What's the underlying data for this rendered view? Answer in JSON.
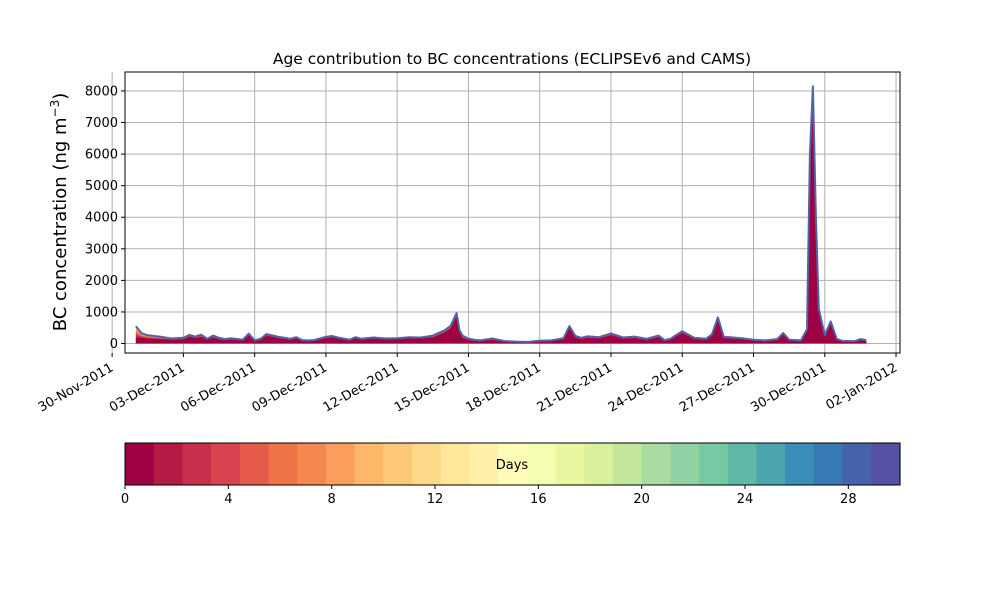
{
  "chart_data": {
    "type": "area",
    "title": "Age contribution to BC concentrations (ECLIPSEv6 and CAMS)",
    "ylabel": "BC concentration (ng m",
    "ylabel_sup": "−3",
    "ylabel_close": ")",
    "xlabel": "",
    "ylim": [
      -300,
      8600
    ],
    "yticks": [
      0,
      1000,
      2000,
      3000,
      4000,
      5000,
      6000,
      7000,
      8000
    ],
    "xlim": [
      "2011-11-30T13:00",
      "2012-01-02T04:00"
    ],
    "xtick_labels": [
      "30-Nov-2011",
      "03-Dec-2011",
      "06-Dec-2011",
      "09-Dec-2011",
      "12-Dec-2011",
      "15-Dec-2011",
      "18-Dec-2011",
      "21-Dec-2011",
      "24-Dec-2011",
      "27-Dec-2011",
      "30-Dec-2011",
      "02-Jan-2012"
    ],
    "xtick_dates": [
      "2011-11-30",
      "2011-12-03",
      "2011-12-06",
      "2011-12-09",
      "2011-12-12",
      "2011-12-15",
      "2011-12-18",
      "2011-12-21",
      "2011-12-24",
      "2011-12-27",
      "2011-12-30",
      "2012-01-02"
    ],
    "grid": true,
    "series": [
      {
        "x": [
          "2011-12-01T00:00",
          "2011-12-01T06:00",
          "2011-12-01T12:00",
          "2011-12-02T00:00",
          "2011-12-02T12:00",
          "2011-12-03T00:00",
          "2011-12-03T06:00",
          "2011-12-03T12:00",
          "2011-12-03T18:00",
          "2011-12-04T00:00",
          "2011-12-04T06:00",
          "2011-12-04T12:00",
          "2011-12-04T18:00",
          "2011-12-05T00:00",
          "2011-12-05T12:00",
          "2011-12-05T18:00",
          "2011-12-06T00:00",
          "2011-12-06T06:00",
          "2011-12-06T12:00",
          "2011-12-07T00:00",
          "2011-12-07T06:00",
          "2011-12-07T12:00",
          "2011-12-07T18:00",
          "2011-12-08T00:00",
          "2011-12-08T06:00",
          "2011-12-08T12:00",
          "2011-12-09T00:00",
          "2011-12-09T06:00",
          "2011-12-09T12:00",
          "2011-12-10T00:00",
          "2011-12-10T06:00",
          "2011-12-10T12:00",
          "2011-12-11T00:00",
          "2011-12-11T12:00",
          "2011-12-12T00:00",
          "2011-12-12T12:00",
          "2011-12-13T00:00",
          "2011-12-13T12:00",
          "2011-12-14T00:00",
          "2011-12-14T06:00",
          "2011-12-14T12:00",
          "2011-12-14T15:00",
          "2011-12-14T18:00",
          "2011-12-15T00:00",
          "2011-12-15T06:00",
          "2011-12-15T12:00",
          "2011-12-16T00:00",
          "2011-12-16T12:00",
          "2011-12-17T00:00",
          "2011-12-17T12:00",
          "2011-12-18T00:00",
          "2011-12-18T12:00",
          "2011-12-19T00:00",
          "2011-12-19T06:00",
          "2011-12-19T12:00",
          "2011-12-19T18:00",
          "2011-12-20T00:00",
          "2011-12-20T12:00",
          "2011-12-21T00:00",
          "2011-12-21T12:00",
          "2011-12-22T00:00",
          "2011-12-22T12:00",
          "2011-12-23T00:00",
          "2011-12-23T06:00",
          "2011-12-23T12:00",
          "2011-12-24T00:00",
          "2011-12-24T12:00",
          "2011-12-25T00:00",
          "2011-12-25T06:00",
          "2011-12-25T12:00",
          "2011-12-25T18:00",
          "2011-12-26T00:00",
          "2011-12-26T12:00",
          "2011-12-27T00:00",
          "2011-12-27T12:00",
          "2011-12-28T00:00",
          "2011-12-28T06:00",
          "2011-12-28T12:00",
          "2011-12-29T00:00",
          "2011-12-29T06:00",
          "2011-12-29T09:00",
          "2011-12-29T12:00",
          "2011-12-29T15:00",
          "2011-12-29T18:00",
          "2011-12-30T00:00",
          "2011-12-30T06:00",
          "2011-12-30T12:00",
          "2011-12-30T18:00",
          "2011-12-31T00:00",
          "2011-12-31T06:00",
          "2011-12-31T12:00",
          "2011-12-31T18:00"
        ],
        "total": [
          550,
          320,
          260,
          220,
          160,
          180,
          270,
          220,
          280,
          150,
          250,
          180,
          140,
          170,
          120,
          310,
          100,
          150,
          300,
          210,
          180,
          150,
          200,
          110,
          100,
          110,
          210,
          240,
          190,
          120,
          200,
          150,
          190,
          160,
          170,
          200,
          190,
          250,
          420,
          560,
          960,
          420,
          250,
          150,
          120,
          100,
          160,
          80,
          60,
          50,
          90,
          100,
          170,
          550,
          240,
          180,
          230,
          200,
          320,
          190,
          220,
          150,
          250,
          110,
          150,
          390,
          180,
          150,
          290,
          830,
          210,
          200,
          170,
          120,
          100,
          140,
          330,
          120,
          100,
          450,
          6000,
          8150,
          4000,
          1100,
          260,
          700,
          150,
          80,
          80,
          70,
          140,
          110
        ],
        "young": [
          100,
          140,
          130,
          120,
          110,
          120,
          200,
          160,
          190,
          110,
          180,
          120,
          100,
          110,
          90,
          240,
          70,
          110,
          230,
          160,
          130,
          100,
          150,
          70,
          80,
          80,
          160,
          190,
          150,
          90,
          160,
          110,
          150,
          120,
          130,
          160,
          150,
          180,
          330,
          460,
          820,
          320,
          170,
          100,
          70,
          60,
          110,
          50,
          40,
          30,
          60,
          70,
          120,
          470,
          180,
          130,
          170,
          150,
          250,
          140,
          160,
          100,
          190,
          80,
          110,
          320,
          130,
          110,
          230,
          740,
          150,
          150,
          120,
          80,
          70,
          100,
          270,
          80,
          70,
          380,
          5700,
          7600,
          3700,
          950,
          210,
          620,
          100,
          50,
          50,
          40,
          90,
          70
        ]
      }
    ]
  },
  "colorbar": {
    "label": "Days",
    "vmin": 0,
    "vmax": 30,
    "ticks": [
      0,
      4,
      8,
      12,
      16,
      20,
      24,
      28
    ],
    "colors": [
      "#9e0142",
      "#b31a45",
      "#c92e4a",
      "#d8434f",
      "#e65a4a",
      "#f07248",
      "#f6894f",
      "#fb9f5c",
      "#fdb768",
      "#fdc878",
      "#fed98a",
      "#fee69a",
      "#fef1a7",
      "#fffbb8",
      "#f7fcb3",
      "#eaf7a1",
      "#d9f09c",
      "#c3e69d",
      "#aadca2",
      "#91d2a4",
      "#77c8a4",
      "#5fb9a6",
      "#4aa5ae",
      "#3a8fb8",
      "#3779b3",
      "#4562aa",
      "#5650a2"
    ]
  },
  "plot_colors": {
    "outline": "#5062a8",
    "grid": "#b0b0b0",
    "band_colors": [
      "#f1c06a",
      "#f39150",
      "#e8604a",
      "#c4284a",
      "#9e0142"
    ]
  }
}
